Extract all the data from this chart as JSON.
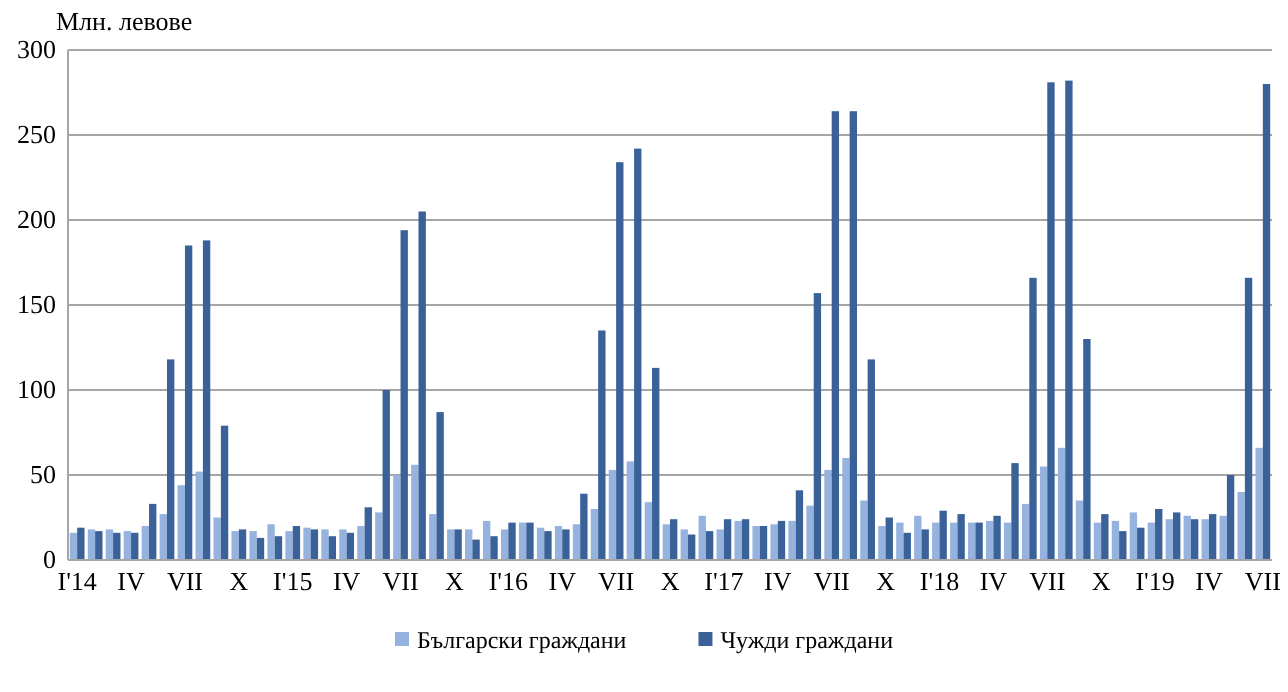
{
  "chart_data": {
    "type": "bar",
    "ylabel": "Млн. левове",
    "categories": [
      "I'14",
      null,
      null,
      "IV",
      null,
      null,
      "VII",
      null,
      null,
      "X",
      null,
      null,
      "I'15",
      null,
      null,
      "IV",
      null,
      null,
      "VII",
      null,
      null,
      "X",
      null,
      null,
      "I'16",
      null,
      null,
      "IV",
      null,
      null,
      "VII",
      null,
      null,
      "X",
      null,
      null,
      "I'17",
      null,
      null,
      "IV",
      null,
      null,
      "VII",
      null,
      null,
      "X",
      null,
      null,
      "I'18",
      null,
      null,
      "IV",
      null,
      null,
      "VII",
      null,
      null,
      "X",
      null,
      null,
      "I'19",
      null,
      null,
      "IV",
      null,
      null,
      "VII"
    ],
    "series": [
      {
        "name": "Български граждани",
        "color": "#95b3de",
        "values": [
          16,
          18,
          18,
          17,
          20,
          27,
          44,
          52,
          25,
          17,
          17,
          21,
          17,
          19,
          18,
          18,
          20,
          28,
          50,
          56,
          27,
          18,
          18,
          23,
          18,
          22,
          19,
          20,
          21,
          30,
          53,
          58,
          34,
          21,
          18,
          26,
          18,
          23,
          20,
          21,
          23,
          32,
          53,
          60,
          35,
          20,
          22,
          26,
          22,
          22,
          22,
          23,
          22,
          33,
          55,
          66,
          35,
          22,
          23,
          28,
          22,
          24,
          26,
          24,
          26,
          40,
          66
        ]
      },
      {
        "name": "Чужди граждани",
        "color": "#3a6299",
        "values": [
          19,
          17,
          16,
          16,
          33,
          118,
          185,
          188,
          79,
          18,
          13,
          14,
          20,
          18,
          14,
          16,
          31,
          100,
          194,
          205,
          87,
          18,
          12,
          14,
          22,
          22,
          17,
          18,
          39,
          135,
          234,
          242,
          113,
          24,
          15,
          17,
          24,
          24,
          20,
          23,
          41,
          157,
          264,
          264,
          118,
          25,
          16,
          18,
          29,
          27,
          22,
          26,
          57,
          166,
          281,
          282,
          130,
          27,
          17,
          19,
          30,
          28,
          24,
          27,
          50,
          166,
          280
        ]
      }
    ],
    "ylim": [
      0,
      300
    ],
    "yticks": [
      0,
      50,
      100,
      150,
      200,
      250,
      300
    ],
    "grid": "y",
    "legend": "bottom"
  }
}
